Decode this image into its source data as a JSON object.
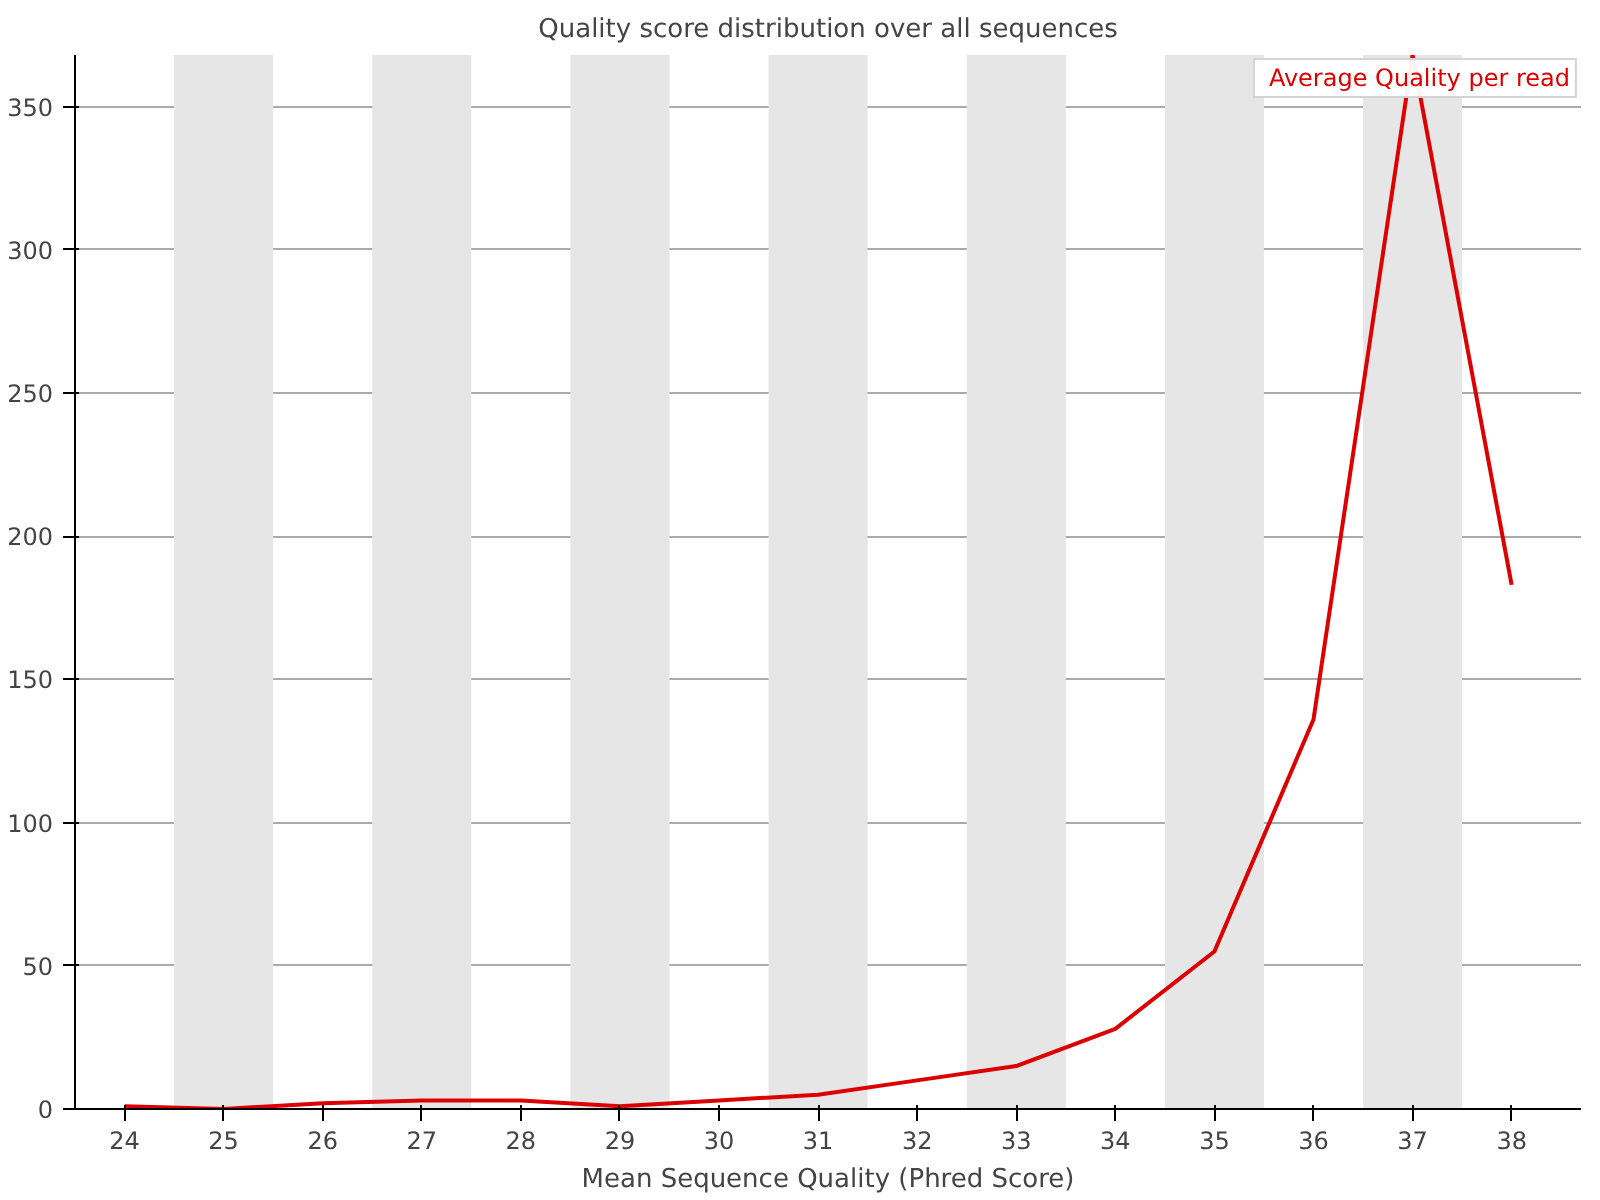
{
  "chart_data": {
    "type": "line",
    "title": "Quality score distribution over all sequences",
    "xlabel": "Mean Sequence Quality (Phred Score)",
    "x": [
      24,
      25,
      26,
      27,
      28,
      29,
      30,
      31,
      32,
      33,
      34,
      35,
      36,
      37,
      38
    ],
    "series": [
      {
        "name": "Average Quality per read",
        "color": "#dd0000",
        "values": [
          1,
          0,
          2,
          3,
          3,
          1,
          3,
          5,
          10,
          15,
          28,
          55,
          136,
          368,
          183
        ]
      }
    ],
    "xlim": [
      23.5,
      38.7
    ],
    "xticks": [
      24,
      25,
      26,
      27,
      28,
      29,
      30,
      31,
      32,
      33,
      34,
      35,
      36,
      37,
      38
    ],
    "ylim": [
      0,
      368
    ],
    "yticks": [
      0,
      50,
      100,
      150,
      200,
      250,
      300,
      350
    ],
    "grid": "y",
    "legend": "top right",
    "marker": "none",
    "line_style": "solid",
    "bands": [
      {
        "axis": "x",
        "from": 24.5,
        "to": 25.5,
        "color": "#e6e6e6"
      },
      {
        "axis": "x",
        "from": 26.5,
        "to": 27.5,
        "color": "#e6e6e6"
      },
      {
        "axis": "x",
        "from": 28.5,
        "to": 29.5,
        "color": "#e6e6e6"
      },
      {
        "axis": "x",
        "from": 30.5,
        "to": 31.5,
        "color": "#e6e6e6"
      },
      {
        "axis": "x",
        "from": 32.5,
        "to": 33.5,
        "color": "#e6e6e6"
      },
      {
        "axis": "x",
        "from": 34.5,
        "to": 35.5,
        "color": "#e6e6e6"
      },
      {
        "axis": "x",
        "from": 36.5,
        "to": 37.5,
        "color": "#e6e6e6"
      }
    ]
  }
}
